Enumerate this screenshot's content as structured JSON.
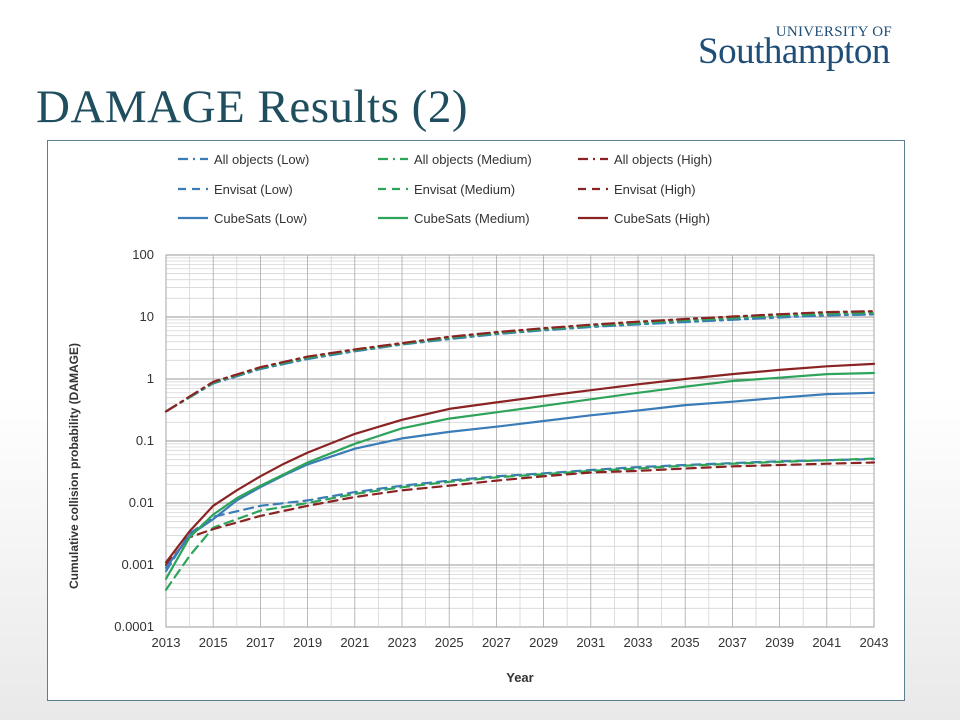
{
  "slide": {
    "title": "DAMAGE Results (2)",
    "logo_top": "UNIVERSITY OF",
    "logo_name": "Southampton"
  },
  "colors": {
    "low": "#3a7cb8",
    "medium": "#2ea35a",
    "high": "#8b2323",
    "title": "#1f4e5f"
  },
  "chart_data": {
    "type": "line",
    "title": "",
    "xlabel": "Year",
    "ylabel": "Cumulative collision probability (DAMAGE)",
    "yscale": "log",
    "ylim": [
      0.0001,
      100
    ],
    "xlim": [
      2013,
      2043
    ],
    "grid": true,
    "legend_position": "top",
    "x_ticks": [
      "2013",
      "2015",
      "2017",
      "2019",
      "2021",
      "2023",
      "2025",
      "2027",
      "2029",
      "2031",
      "2033",
      "2035",
      "2037",
      "2039",
      "2041",
      "2043"
    ],
    "y_ticks": [
      "100",
      "10",
      "1",
      "0.1",
      "0.01",
      "0.001",
      "0.0001"
    ],
    "series": [
      {
        "name": "All objects (Low)",
        "color": "#3a7cb8",
        "style": "dashdot",
        "x": [
          2013,
          2015,
          2017,
          2019,
          2021,
          2023,
          2025,
          2027,
          2029,
          2031,
          2033,
          2035,
          2037,
          2039,
          2041,
          2043
        ],
        "y": [
          0.3,
          0.85,
          1.45,
          2.1,
          2.8,
          3.6,
          4.4,
          5.3,
          6.1,
          6.9,
          7.6,
          8.3,
          9.0,
          9.8,
          10.6,
          11.0
        ]
      },
      {
        "name": "All objects (Medium)",
        "color": "#2ea35a",
        "style": "dashdot",
        "x": [
          2013,
          2015,
          2017,
          2019,
          2021,
          2023,
          2025,
          2027,
          2029,
          2031,
          2033,
          2035,
          2037,
          2039,
          2041,
          2043
        ],
        "y": [
          0.3,
          0.87,
          1.5,
          2.2,
          2.9,
          3.7,
          4.6,
          5.5,
          6.3,
          7.2,
          8.0,
          8.8,
          9.6,
          10.5,
          11.3,
          11.7
        ]
      },
      {
        "name": "All objects (High)",
        "color": "#8b2323",
        "style": "dashdot",
        "x": [
          2013,
          2015,
          2017,
          2019,
          2021,
          2023,
          2025,
          2027,
          2029,
          2031,
          2033,
          2035,
          2037,
          2039,
          2041,
          2043
        ],
        "y": [
          0.3,
          0.9,
          1.55,
          2.3,
          3.0,
          3.8,
          4.8,
          5.7,
          6.6,
          7.5,
          8.4,
          9.3,
          10.2,
          11.1,
          12.0,
          12.4
        ]
      },
      {
        "name": "Envisat (Low)",
        "color": "#3a7cb8",
        "style": "dashed",
        "x": [
          2013,
          2014,
          2015,
          2017,
          2019,
          2021,
          2023,
          2025,
          2027,
          2029,
          2031,
          2033,
          2035,
          2037,
          2039,
          2041,
          2043
        ],
        "y": [
          0.0008,
          0.0032,
          0.006,
          0.009,
          0.011,
          0.015,
          0.019,
          0.023,
          0.027,
          0.03,
          0.034,
          0.038,
          0.041,
          0.044,
          0.047,
          0.049,
          0.051
        ]
      },
      {
        "name": "Envisat (Medium)",
        "color": "#2ea35a",
        "style": "dashed",
        "x": [
          2013,
          2014,
          2015,
          2017,
          2019,
          2021,
          2023,
          2025,
          2027,
          2029,
          2031,
          2033,
          2035,
          2037,
          2039,
          2041,
          2043
        ],
        "y": [
          0.0004,
          0.0014,
          0.004,
          0.0075,
          0.01,
          0.014,
          0.018,
          0.022,
          0.026,
          0.029,
          0.033,
          0.036,
          0.04,
          0.043,
          0.046,
          0.049,
          0.052
        ]
      },
      {
        "name": "Envisat (High)",
        "color": "#8b2323",
        "style": "dashed",
        "x": [
          2013,
          2014,
          2015,
          2017,
          2019,
          2021,
          2023,
          2025,
          2027,
          2029,
          2031,
          2033,
          2035,
          2037,
          2039,
          2041,
          2043
        ],
        "y": [
          0.001,
          0.0028,
          0.0038,
          0.0062,
          0.009,
          0.0125,
          0.016,
          0.019,
          0.023,
          0.027,
          0.031,
          0.033,
          0.036,
          0.039,
          0.041,
          0.043,
          0.045
        ]
      },
      {
        "name": "CubeSats (Low)",
        "color": "#3a7cb8",
        "style": "solid",
        "x": [
          2013,
          2014,
          2015,
          2016,
          2017,
          2018,
          2019,
          2021,
          2023,
          2025,
          2027,
          2029,
          2031,
          2033,
          2035,
          2037,
          2039,
          2041,
          2043
        ],
        "y": [
          0.0009,
          0.003,
          0.0055,
          0.011,
          0.018,
          0.028,
          0.042,
          0.075,
          0.11,
          0.14,
          0.17,
          0.21,
          0.26,
          0.31,
          0.38,
          0.43,
          0.5,
          0.57,
          0.6
        ]
      },
      {
        "name": "CubeSats (Medium)",
        "color": "#2ea35a",
        "style": "solid",
        "x": [
          2013,
          2014,
          2015,
          2016,
          2017,
          2018,
          2019,
          2021,
          2023,
          2025,
          2027,
          2029,
          2031,
          2033,
          2035,
          2037,
          2039,
          2041,
          2043
        ],
        "y": [
          0.0006,
          0.0028,
          0.0065,
          0.012,
          0.019,
          0.029,
          0.045,
          0.09,
          0.16,
          0.23,
          0.29,
          0.37,
          0.47,
          0.6,
          0.75,
          0.93,
          1.05,
          1.2,
          1.25
        ]
      },
      {
        "name": "CubeSats (High)",
        "color": "#8b2323",
        "style": "solid",
        "x": [
          2013,
          2014,
          2015,
          2016,
          2017,
          2018,
          2019,
          2021,
          2023,
          2025,
          2027,
          2029,
          2031,
          2033,
          2035,
          2037,
          2039,
          2041,
          2043
        ],
        "y": [
          0.0011,
          0.0035,
          0.009,
          0.016,
          0.027,
          0.043,
          0.065,
          0.13,
          0.22,
          0.33,
          0.42,
          0.53,
          0.66,
          0.82,
          1.0,
          1.2,
          1.4,
          1.6,
          1.75
        ]
      }
    ]
  }
}
